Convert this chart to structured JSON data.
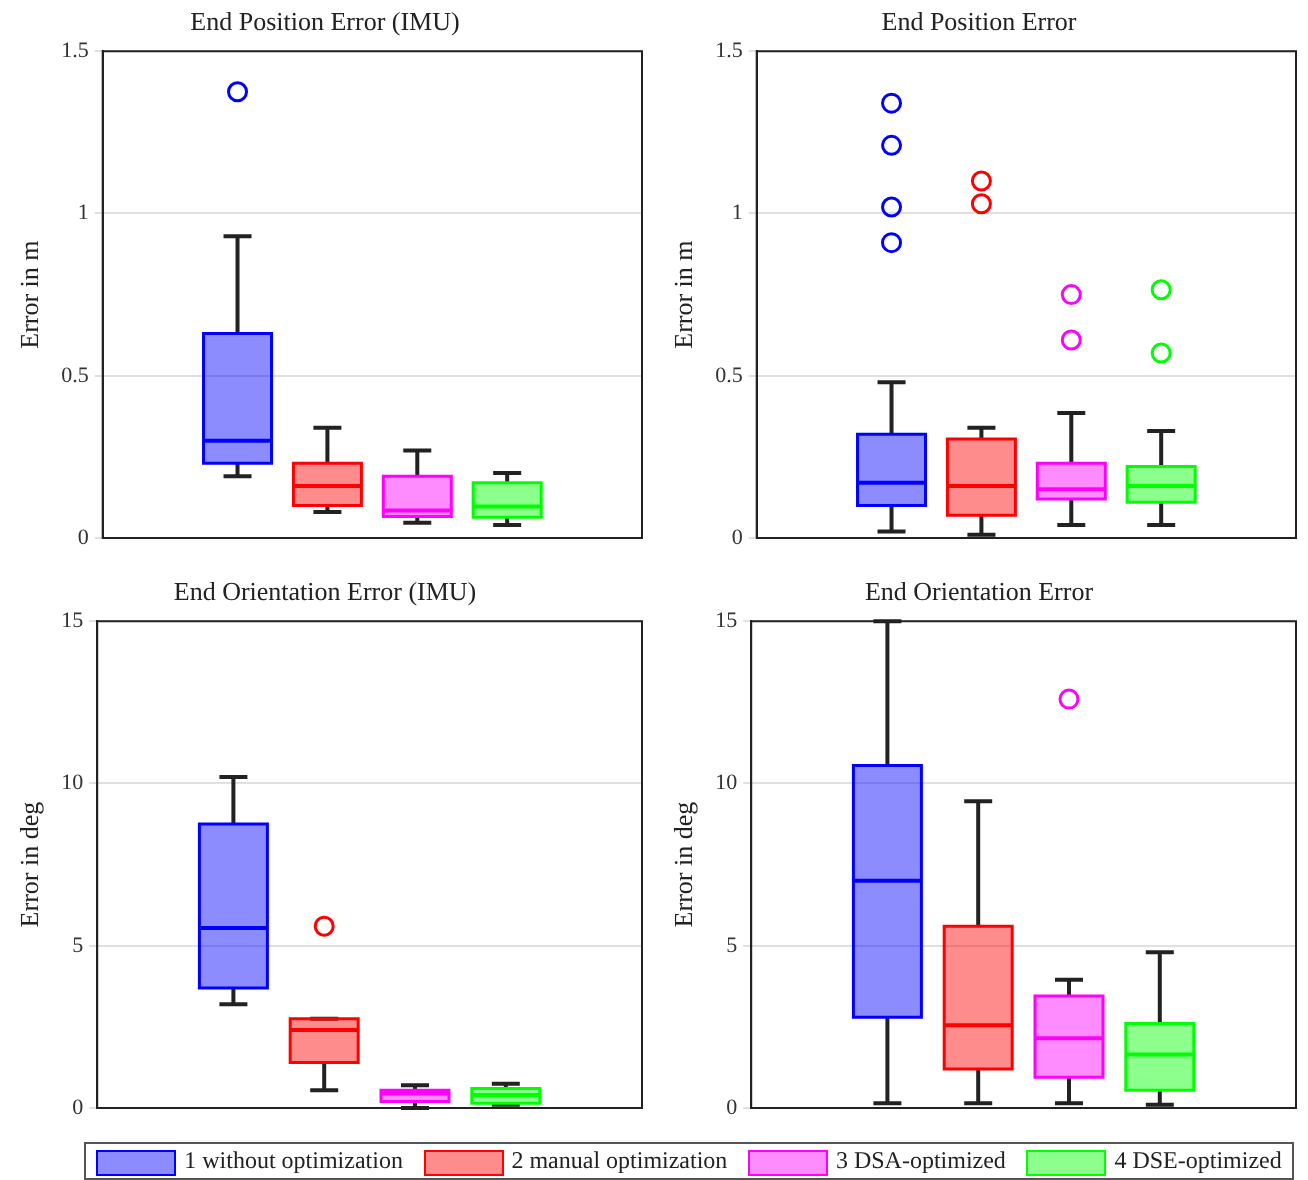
{
  "chart_data": [
    {
      "type": "box",
      "title": "End Position Error (IMU)",
      "ylabel": "Error in m",
      "categories": [
        null,
        null,
        null,
        null,
        null,
        null
      ],
      "ylim": [
        0,
        1.5
      ],
      "yticks": [
        0,
        0.5,
        1,
        1.5
      ],
      "grid": "y",
      "tick_labels": "y",
      "series": [
        {
          "color": "#0000ff",
          "boxes": [
            null,
            {
              "low": 0.19,
              "q1": 0.23,
              "median": 0.3,
              "q3": 0.63,
              "high": 0.93,
              "outliers": [
                1.375
              ]
            },
            null,
            null,
            null,
            null
          ]
        },
        {
          "color": "#ff0000",
          "boxes": [
            null,
            null,
            {
              "low": 0.08,
              "q1": 0.1,
              "median": 0.16,
              "q3": 0.23,
              "high": 0.34
            },
            null,
            null,
            null
          ]
        },
        {
          "color": "#ff00ff",
          "boxes": [
            null,
            null,
            null,
            {
              "low": 0.047,
              "q1": 0.066,
              "median": 0.085,
              "q3": 0.19,
              "high": 0.27
            },
            null,
            null
          ]
        },
        {
          "color": "#00ff00",
          "boxes": [
            null,
            null,
            null,
            null,
            {
              "low": 0.04,
              "q1": 0.064,
              "median": 0.097,
              "q3": 0.17,
              "high": 0.2
            },
            null
          ]
        }
      ]
    },
    {
      "type": "box",
      "title": "End Position Error",
      "ylabel": "Error in m",
      "categories": [
        null,
        null,
        null,
        null,
        null,
        null
      ],
      "ylim": [
        0,
        1.5
      ],
      "yticks": [
        0,
        0.5,
        1,
        1.5
      ],
      "grid": "y",
      "tick_labels": "y",
      "series": [
        {
          "color": "#0000ff",
          "boxes": [
            null,
            {
              "low": 0.02,
              "q1": 0.1,
              "median": 0.17,
              "q3": 0.32,
              "high": 0.48,
              "outliers": [
                1.34,
                1.21,
                1.02,
                0.91
              ]
            },
            null,
            null,
            null,
            null
          ]
        },
        {
          "color": "#ff0000",
          "boxes": [
            null,
            null,
            {
              "low": 0.01,
              "q1": 0.07,
              "median": 0.16,
              "q3": 0.305,
              "high": 0.34,
              "outliers": [
                1.1,
                1.03
              ]
            },
            null,
            null,
            null
          ]
        },
        {
          "color": "#ff00ff",
          "boxes": [
            null,
            null,
            null,
            {
              "low": 0.04,
              "q1": 0.12,
              "median": 0.15,
              "q3": 0.23,
              "high": 0.385,
              "outliers": [
                0.75,
                0.61
              ]
            },
            null,
            null
          ]
        },
        {
          "color": "#00ff00",
          "boxes": [
            null,
            null,
            null,
            null,
            {
              "low": 0.04,
              "q1": 0.11,
              "median": 0.16,
              "q3": 0.22,
              "high": 0.33,
              "outliers": [
                0.765,
                0.57
              ]
            },
            null
          ]
        }
      ]
    },
    {
      "type": "box",
      "title": "End Orientation Error (IMU)",
      "ylabel": "Error in deg",
      "categories": [
        null,
        null,
        null,
        null,
        null,
        null
      ],
      "ylim": [
        0,
        15
      ],
      "yticks": [
        0,
        5,
        10,
        15
      ],
      "grid": "y",
      "tick_labels": "y",
      "series": [
        {
          "color": "#0000ff",
          "boxes": [
            null,
            {
              "low": 3.2,
              "q1": 3.7,
              "median": 5.55,
              "q3": 8.75,
              "high": 10.2
            },
            null,
            null,
            null,
            null
          ]
        },
        {
          "color": "#ff0000",
          "boxes": [
            null,
            null,
            {
              "low": 0.55,
              "q1": 1.4,
              "median": 2.4,
              "q3": 2.75,
              "high": 2.75,
              "outliers": [
                5.6
              ]
            },
            null,
            null,
            null
          ]
        },
        {
          "color": "#ff00ff",
          "boxes": [
            null,
            null,
            null,
            {
              "low": 0.0,
              "q1": 0.2,
              "median": 0.45,
              "q3": 0.55,
              "high": 0.7
            },
            null,
            null
          ]
        },
        {
          "color": "#00ff00",
          "boxes": [
            null,
            null,
            null,
            null,
            {
              "low": 0.1,
              "q1": 0.15,
              "median": 0.4,
              "q3": 0.6,
              "high": 0.75
            },
            null
          ]
        }
      ]
    },
    {
      "type": "box",
      "title": "End Orientation Error",
      "ylabel": "Error in deg",
      "categories": [
        null,
        null,
        null,
        null,
        null,
        null
      ],
      "ylim": [
        0,
        15
      ],
      "yticks": [
        0,
        5,
        10,
        15
      ],
      "grid": "y",
      "tick_labels": "y",
      "legend": "bottom",
      "series": [
        {
          "name": "1 without optimization",
          "color": "#0000ff",
          "boxes": [
            null,
            {
              "low": 0.15,
              "q1": 2.8,
              "median": 7.0,
              "q3": 10.55,
              "high": 15
            },
            null,
            null,
            null,
            null
          ]
        },
        {
          "name": "2 manual optimization",
          "color": "#ff0000",
          "boxes": [
            null,
            null,
            {
              "low": 0.15,
              "q1": 1.2,
              "median": 2.55,
              "q3": 5.6,
              "high": 9.45
            },
            null,
            null,
            null
          ]
        },
        {
          "name": "3 DSA-optimized",
          "color": "#ff00ff",
          "boxes": [
            null,
            null,
            null,
            {
              "low": 0.15,
              "q1": 0.95,
              "median": 2.15,
              "q3": 3.45,
              "high": 3.95,
              "outliers": [
                12.6
              ]
            },
            null,
            null
          ]
        },
        {
          "name": "4 DSE-optimized",
          "color": "#00ff00",
          "boxes": [
            null,
            null,
            null,
            null,
            {
              "low": 0.1,
              "q1": 0.55,
              "median": 1.65,
              "q3": 2.6,
              "high": 4.8
            },
            null
          ]
        }
      ]
    }
  ]
}
